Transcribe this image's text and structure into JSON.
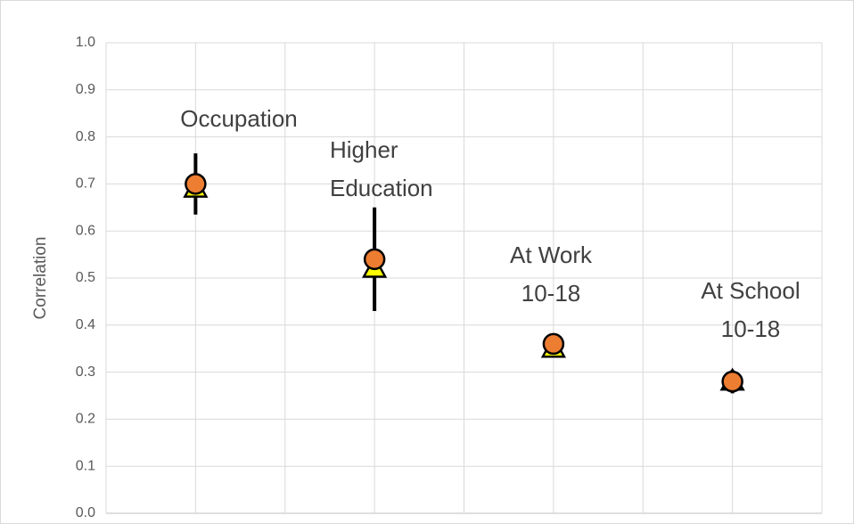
{
  "chart_data": {
    "type": "scatter",
    "ylabel": "Correlation",
    "x": [
      1,
      3,
      5,
      7
    ],
    "xlim": [
      0,
      8
    ],
    "xticks": [
      0,
      1,
      2,
      3,
      4,
      5,
      6,
      7,
      8
    ],
    "show_xtick_labels": false,
    "ylim": [
      0,
      1
    ],
    "yticks": [
      {
        "value": 0,
        "label": "0.0"
      },
      0.1,
      0.2,
      0.3,
      0.4,
      0.5,
      0.6,
      0.7,
      0.8,
      0.9,
      {
        "value": 1,
        "label": "1.0"
      }
    ],
    "grid": true,
    "series": [
      {
        "marker": "triangle",
        "color": "#ffff00",
        "values": [
          0.69,
          0.52,
          0.35,
          0.28
        ]
      },
      {
        "marker": "circle",
        "color": "#ed7d31",
        "values": [
          0.7,
          0.54,
          0.36,
          0.28
        ],
        "errors": [
          0.065,
          0.11,
          0.02,
          0.025
        ]
      }
    ],
    "annotations": [
      [
        "Occupation"
      ],
      [
        "Higher",
        "Education"
      ],
      [
        "At Work",
        "10-18"
      ],
      [
        "At School",
        "10-18"
      ]
    ]
  }
}
